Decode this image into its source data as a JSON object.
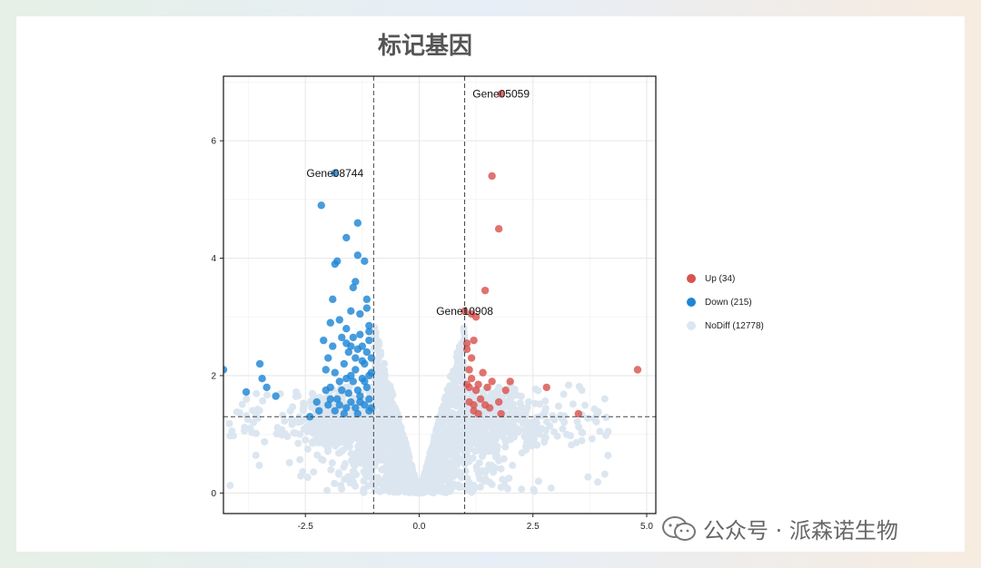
{
  "chart_data": {
    "type": "scatter",
    "title": "标记基因",
    "xlabel": "",
    "ylabel": "",
    "xlim": [
      -4.3,
      5.2
    ],
    "ylim": [
      -0.35,
      7.1
    ],
    "xticks": [
      "-2.5",
      "0.0",
      "2.5",
      "5.0"
    ],
    "yticks": [
      "0",
      "2",
      "4",
      "6"
    ],
    "thresholds": {
      "x": [
        -1,
        1
      ],
      "y": 1.3
    },
    "grid": true,
    "legend_position": "right",
    "series": [
      {
        "name": "Up (34)",
        "color": "#d9534f",
        "points": [
          [
            1.8,
            6.8
          ],
          [
            1.6,
            5.4
          ],
          [
            1.75,
            4.5
          ],
          [
            1.45,
            3.45
          ],
          [
            1.15,
            3.05
          ],
          [
            1.25,
            3.0
          ],
          [
            1.05,
            2.55
          ],
          [
            1.15,
            2.3
          ],
          [
            1.1,
            2.1
          ],
          [
            1.4,
            2.05
          ],
          [
            1.05,
            1.85
          ],
          [
            1.1,
            1.8
          ],
          [
            1.25,
            1.75
          ],
          [
            1.6,
            1.9
          ],
          [
            1.9,
            1.75
          ],
          [
            2.0,
            1.9
          ],
          [
            1.75,
            1.55
          ],
          [
            1.2,
            1.5
          ],
          [
            1.45,
            1.5
          ],
          [
            1.2,
            1.4
          ],
          [
            1.3,
            1.35
          ],
          [
            1.8,
            1.35
          ],
          [
            2.8,
            1.8
          ],
          [
            3.5,
            1.35
          ],
          [
            4.8,
            2.1
          ],
          [
            1.05,
            2.45
          ],
          [
            1.3,
            1.85
          ],
          [
            1.55,
            1.45
          ],
          [
            1.15,
            1.95
          ],
          [
            1.0,
            3.1
          ],
          [
            1.2,
            2.6
          ],
          [
            1.35,
            1.6
          ],
          [
            1.5,
            1.8
          ],
          [
            1.1,
            1.55
          ]
        ]
      },
      {
        "name": "Down (215)",
        "color": "#1f86d6",
        "points": [
          [
            -1.85,
            5.45
          ],
          [
            -2.15,
            4.9
          ],
          [
            -1.35,
            4.6
          ],
          [
            -1.6,
            4.35
          ],
          [
            -1.35,
            4.05
          ],
          [
            -1.8,
            3.95
          ],
          [
            -1.85,
            3.9
          ],
          [
            -1.2,
            3.95
          ],
          [
            -1.4,
            3.6
          ],
          [
            -1.45,
            3.5
          ],
          [
            -1.9,
            3.3
          ],
          [
            -1.15,
            3.3
          ],
          [
            -1.5,
            3.1
          ],
          [
            -1.3,
            3.05
          ],
          [
            -1.75,
            2.95
          ],
          [
            -1.95,
            2.9
          ],
          [
            -1.1,
            2.85
          ],
          [
            -2.1,
            2.6
          ],
          [
            -1.6,
            2.55
          ],
          [
            -1.9,
            2.5
          ],
          [
            -1.35,
            2.45
          ],
          [
            -2.0,
            2.3
          ],
          [
            -1.65,
            2.2
          ],
          [
            -1.85,
            2.05
          ],
          [
            -1.5,
            2.0
          ],
          [
            -1.25,
            1.95
          ],
          [
            -1.75,
            1.9
          ],
          [
            -1.95,
            1.8
          ],
          [
            -2.05,
            1.75
          ],
          [
            -1.55,
            1.7
          ],
          [
            -1.3,
            1.65
          ],
          [
            -1.8,
            1.6
          ],
          [
            -2.25,
            1.55
          ],
          [
            -2.0,
            1.5
          ],
          [
            -1.6,
            1.45
          ],
          [
            -1.85,
            1.4
          ],
          [
            -1.35,
            1.35
          ],
          [
            -1.65,
            1.35
          ],
          [
            -2.4,
            1.3
          ],
          [
            -2.2,
            1.4
          ],
          [
            -3.5,
            2.2
          ],
          [
            -3.45,
            1.95
          ],
          [
            -3.35,
            1.8
          ],
          [
            -3.15,
            1.65
          ],
          [
            -3.8,
            1.72
          ],
          [
            -4.3,
            2.1
          ],
          [
            -1.1,
            2.6
          ],
          [
            -1.15,
            2.4
          ],
          [
            -1.2,
            2.2
          ],
          [
            -1.1,
            2.0
          ],
          [
            -1.15,
            1.8
          ],
          [
            -1.1,
            1.6
          ],
          [
            -1.2,
            1.5
          ],
          [
            -1.05,
            1.45
          ],
          [
            -1.3,
            2.7
          ],
          [
            -1.4,
            2.3
          ],
          [
            -1.45,
            1.9
          ],
          [
            -1.5,
            1.55
          ],
          [
            -1.7,
            1.75
          ],
          [
            -1.4,
            2.1
          ],
          [
            -1.25,
            2.5
          ],
          [
            -1.05,
            2.3
          ],
          [
            -1.1,
            2.75
          ],
          [
            -1.2,
            1.9
          ],
          [
            -1.3,
            1.55
          ],
          [
            -1.15,
            3.15
          ],
          [
            -1.05,
            2.05
          ],
          [
            -1.55,
            2.4
          ],
          [
            -1.7,
            2.65
          ],
          [
            -2.05,
            2.1
          ],
          [
            -1.95,
            1.6
          ],
          [
            -1.6,
            1.95
          ],
          [
            -1.35,
            1.75
          ],
          [
            -1.45,
            2.65
          ],
          [
            -1.25,
            2.25
          ],
          [
            -1.1,
            1.4
          ],
          [
            -1.4,
            1.45
          ],
          [
            -1.75,
            1.5
          ],
          [
            -1.6,
            2.8
          ],
          [
            -1.5,
            2.5
          ]
        ]
      },
      {
        "name": "NoDiff (12778)",
        "color": "#dce6f0",
        "points": []
      }
    ],
    "annotations": [
      {
        "text": "Gene05059",
        "x": 1.8,
        "y": 6.8
      },
      {
        "text": "Gene08744",
        "x": -1.85,
        "y": 5.45
      },
      {
        "text": "Gene10908",
        "x": 1.0,
        "y": 3.1
      }
    ]
  },
  "watermark": {
    "text": "公众号 · 派森诺生物",
    "icon": "wechat-icon"
  }
}
